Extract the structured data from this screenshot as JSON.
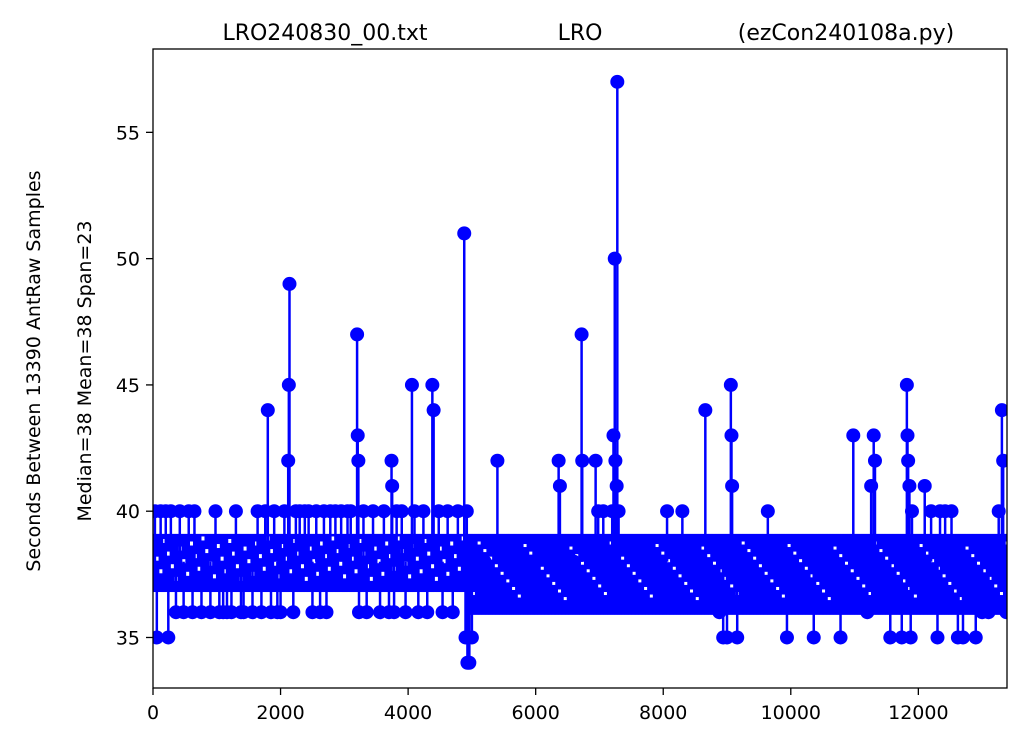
{
  "chart_data": {
    "type": "scatter",
    "title": {
      "left": "LRO240830_00.txt",
      "center": "LRO",
      "right": "(ezCon240108a.py)"
    },
    "ylabel_outer": "Seconds Between 13390 AntRaw Samples",
    "ylabel_inner": "Median=38  Mean=38  Span=23",
    "xlabel": "",
    "xlim": [
      0,
      13390
    ],
    "ylim": [
      33,
      58.3
    ],
    "xticks": [
      0,
      2000,
      4000,
      6000,
      8000,
      10000,
      12000
    ],
    "yticks": [
      35,
      40,
      45,
      50,
      55
    ],
    "color": "#0000ff",
    "baseline_value": 38,
    "band_segments": [
      {
        "x_start": 0,
        "x_end": 4900,
        "low": 36.8,
        "high": 39.1
      },
      {
        "x_start": 4900,
        "x_end": 13390,
        "low": 35.9,
        "high": 39.1
      }
    ],
    "series": [
      {
        "values": [
          [
            30,
            40
          ],
          [
            60,
            35
          ],
          [
            120,
            40
          ],
          [
            200,
            40
          ],
          [
            240,
            35
          ],
          [
            280,
            40
          ],
          [
            360,
            36
          ],
          [
            420,
            40
          ],
          [
            480,
            36
          ],
          [
            560,
            40
          ],
          [
            620,
            36
          ],
          [
            650,
            40
          ],
          [
            760,
            36
          ],
          [
            900,
            36
          ],
          [
            980,
            40
          ],
          [
            1040,
            36
          ],
          [
            1100,
            36
          ],
          [
            1160,
            36
          ],
          [
            1230,
            36
          ],
          [
            1300,
            40
          ],
          [
            1380,
            36
          ],
          [
            1420,
            36
          ],
          [
            1560,
            36
          ],
          [
            1640,
            40
          ],
          [
            1700,
            36
          ],
          [
            1760,
            40
          ],
          [
            1800,
            44
          ],
          [
            1850,
            36
          ],
          [
            1900,
            40
          ],
          [
            1950,
            36
          ],
          [
            2000,
            36
          ],
          [
            2060,
            40
          ],
          [
            2120,
            42
          ],
          [
            2130,
            45
          ],
          [
            2140,
            49
          ],
          [
            2200,
            36
          ],
          [
            2240,
            40
          ],
          [
            2300,
            40
          ],
          [
            2380,
            40
          ],
          [
            2440,
            40
          ],
          [
            2500,
            36
          ],
          [
            2560,
            40
          ],
          [
            2620,
            36
          ],
          [
            2680,
            40
          ],
          [
            2720,
            36
          ],
          [
            2780,
            40
          ],
          [
            2860,
            40
          ],
          [
            2950,
            40
          ],
          [
            3050,
            40
          ],
          [
            3100,
            40
          ],
          [
            3200,
            47
          ],
          [
            3210,
            43
          ],
          [
            3220,
            42
          ],
          [
            3230,
            36
          ],
          [
            3300,
            40
          ],
          [
            3350,
            36
          ],
          [
            3450,
            40
          ],
          [
            3560,
            36
          ],
          [
            3620,
            40
          ],
          [
            3700,
            36
          ],
          [
            3740,
            42
          ],
          [
            3750,
            41
          ],
          [
            3780,
            36
          ],
          [
            3820,
            40
          ],
          [
            3900,
            40
          ],
          [
            3960,
            36
          ],
          [
            4060,
            45
          ],
          [
            4100,
            40
          ],
          [
            4160,
            36
          ],
          [
            4240,
            40
          ],
          [
            4300,
            36
          ],
          [
            4380,
            45
          ],
          [
            4400,
            44
          ],
          [
            4480,
            40
          ],
          [
            4540,
            36
          ],
          [
            4620,
            40
          ],
          [
            4700,
            36
          ],
          [
            4780,
            40
          ],
          [
            4880,
            51
          ],
          [
            4900,
            35
          ],
          [
            4920,
            40
          ],
          [
            4930,
            34
          ],
          [
            4960,
            34
          ],
          [
            5000,
            35
          ],
          [
            5200,
            38
          ],
          [
            5400,
            42
          ],
          [
            5600,
            38
          ],
          [
            6000,
            38
          ],
          [
            6320,
            38
          ],
          [
            6360,
            42
          ],
          [
            6380,
            41
          ],
          [
            6600,
            38
          ],
          [
            6720,
            47
          ],
          [
            6730,
            42
          ],
          [
            6940,
            42
          ],
          [
            6980,
            40
          ],
          [
            7060,
            40
          ],
          [
            7200,
            40
          ],
          [
            7220,
            43
          ],
          [
            7240,
            50
          ],
          [
            7250,
            42
          ],
          [
            7270,
            41
          ],
          [
            7280,
            57
          ],
          [
            7300,
            40
          ],
          [
            7600,
            38
          ],
          [
            8060,
            40
          ],
          [
            8300,
            40
          ],
          [
            8660,
            44
          ],
          [
            8880,
            36
          ],
          [
            8940,
            35
          ],
          [
            9000,
            35
          ],
          [
            9060,
            45
          ],
          [
            9070,
            43
          ],
          [
            9080,
            41
          ],
          [
            9160,
            35
          ],
          [
            9640,
            40
          ],
          [
            9940,
            35
          ],
          [
            10360,
            35
          ],
          [
            10780,
            35
          ],
          [
            10980,
            43
          ],
          [
            11200,
            36
          ],
          [
            11260,
            41
          ],
          [
            11300,
            43
          ],
          [
            11320,
            42
          ],
          [
            11560,
            35
          ],
          [
            11740,
            35
          ],
          [
            11820,
            45
          ],
          [
            11830,
            43
          ],
          [
            11840,
            42
          ],
          [
            11860,
            41
          ],
          [
            11880,
            35
          ],
          [
            11900,
            40
          ],
          [
            12100,
            41
          ],
          [
            12200,
            40
          ],
          [
            12300,
            35
          ],
          [
            12340,
            40
          ],
          [
            12420,
            40
          ],
          [
            12520,
            40
          ],
          [
            12620,
            35
          ],
          [
            12700,
            35
          ],
          [
            12900,
            35
          ],
          [
            13000,
            36
          ],
          [
            13100,
            36
          ],
          [
            13260,
            40
          ],
          [
            13310,
            44
          ],
          [
            13330,
            42
          ],
          [
            13380,
            36
          ]
        ]
      }
    ]
  }
}
